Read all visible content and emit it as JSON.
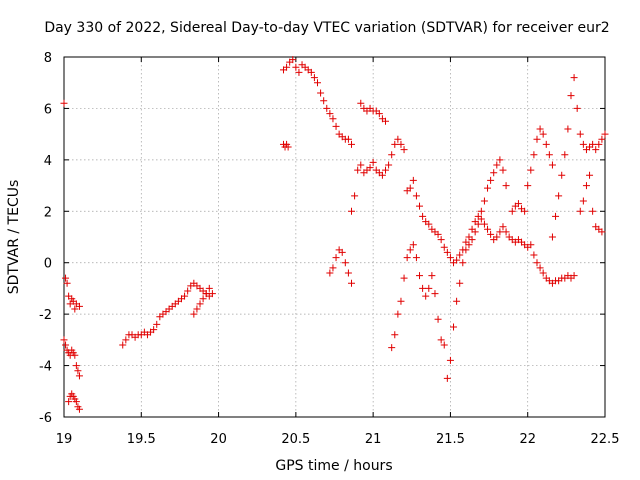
{
  "chart_data": {
    "type": "scatter",
    "title": "Day 330 of 2022, Sidereal Day-to-day VTEC variation (SDTVAR) for receiver eur2",
    "xlabel": "GPS time / hours",
    "ylabel": "SDTVAR / TECUs",
    "xlim": [
      19,
      22.5
    ],
    "ylim": [
      -6,
      8
    ],
    "x_ticks": [
      19,
      19.5,
      20,
      20.5,
      21,
      21.5,
      22,
      22.5
    ],
    "x_tick_labels": [
      "19",
      "19.5",
      "20",
      "20.5",
      "21",
      "21.5",
      "22",
      "22.5"
    ],
    "y_ticks": [
      -6,
      -4,
      -2,
      0,
      2,
      4,
      6,
      8
    ],
    "y_tick_labels": [
      "-6",
      "-4",
      "-2",
      "0",
      "2",
      "4",
      "6",
      "8"
    ],
    "grid": true,
    "marker": "+",
    "color": "#e00000",
    "series": [
      {
        "name": "seg1",
        "x": [
          19.0,
          19.01,
          19.02,
          19.03,
          19.04,
          19.05,
          19.06,
          19.07,
          19.08,
          19.1
        ],
        "y": [
          6.2,
          -0.6,
          -0.8,
          -1.3,
          -1.6,
          -1.4,
          -1.5,
          -1.8,
          -1.6,
          -1.7
        ]
      },
      {
        "name": "seg2",
        "x": [
          19.0,
          19.01,
          19.02,
          19.03,
          19.04,
          19.05,
          19.06,
          19.07,
          19.08,
          19.09,
          19.1
        ],
        "y": [
          -3.0,
          -3.2,
          -3.4,
          -3.5,
          -3.6,
          -3.4,
          -3.5,
          -3.6,
          -4.0,
          -4.2,
          -4.4
        ]
      },
      {
        "name": "seg3",
        "x": [
          19.03,
          19.04,
          19.05,
          19.06,
          19.07,
          19.08,
          19.09,
          19.1
        ],
        "y": [
          -5.4,
          -5.2,
          -5.1,
          -5.2,
          -5.3,
          -5.4,
          -5.6,
          -5.7
        ]
      },
      {
        "name": "seg4",
        "x": [
          19.38,
          19.4,
          19.42,
          19.44,
          19.46,
          19.48,
          19.5,
          19.52,
          19.54,
          19.56,
          19.58,
          19.6,
          19.62,
          19.64,
          19.66,
          19.68,
          19.7,
          19.72,
          19.74,
          19.76,
          19.78,
          19.8,
          19.82,
          19.84,
          19.86,
          19.88,
          19.9,
          19.92,
          19.94,
          19.96
        ],
        "y": [
          -3.2,
          -3.0,
          -2.8,
          -2.8,
          -2.9,
          -2.8,
          -2.8,
          -2.7,
          -2.8,
          -2.7,
          -2.6,
          -2.4,
          -2.1,
          -2.0,
          -1.9,
          -1.8,
          -1.7,
          -1.6,
          -1.5,
          -1.4,
          -1.3,
          -1.1,
          -0.9,
          -0.8,
          -0.9,
          -1.0,
          -1.1,
          -1.2,
          -1.3,
          -1.2
        ]
      },
      {
        "name": "seg5",
        "x": [
          19.84,
          19.86,
          19.88,
          19.9,
          19.92,
          19.94
        ],
        "y": [
          -2.0,
          -1.8,
          -1.6,
          -1.4,
          -1.2,
          -1.0
        ]
      },
      {
        "name": "seg6",
        "x": [
          20.42,
          20.43,
          20.44,
          20.45
        ],
        "y": [
          4.6,
          4.5,
          4.6,
          4.5
        ]
      },
      {
        "name": "seg7",
        "x": [
          20.42,
          20.44,
          20.46,
          20.48,
          20.5,
          20.52,
          20.54,
          20.56,
          20.58,
          20.6,
          20.62,
          20.64,
          20.66,
          20.68,
          20.7,
          20.72,
          20.74,
          20.76,
          20.78,
          20.8,
          20.82,
          20.84,
          20.86
        ],
        "y": [
          7.5,
          7.6,
          7.8,
          7.9,
          7.6,
          7.4,
          7.7,
          7.6,
          7.5,
          7.4,
          7.2,
          7.0,
          6.6,
          6.3,
          6.0,
          5.8,
          5.6,
          5.3,
          5.0,
          4.9,
          4.8,
          4.8,
          4.6
        ]
      },
      {
        "name": "seg8",
        "x": [
          20.72,
          20.74,
          20.76,
          20.78,
          20.8,
          20.82,
          20.84,
          20.86
        ],
        "y": [
          -0.4,
          -0.2,
          0.2,
          0.5,
          0.4,
          0.0,
          -0.4,
          -0.8
        ]
      },
      {
        "name": "seg9",
        "x": [
          20.86,
          20.88,
          20.9,
          20.92,
          20.94,
          20.96,
          20.98,
          21.0,
          21.02,
          21.04,
          21.06,
          21.08,
          21.1,
          21.12,
          21.14,
          21.16,
          21.18,
          21.2
        ],
        "y": [
          2.0,
          2.6,
          3.6,
          3.8,
          3.5,
          3.6,
          3.7,
          3.9,
          3.6,
          3.5,
          3.4,
          3.6,
          3.8,
          4.2,
          4.6,
          4.8,
          4.6,
          4.4
        ]
      },
      {
        "name": "seg10",
        "x": [
          20.92,
          20.94,
          20.96,
          20.98,
          21.0,
          21.02,
          21.04,
          21.06,
          21.08
        ],
        "y": [
          6.2,
          6.0,
          5.9,
          6.0,
          5.9,
          5.9,
          5.8,
          5.6,
          5.5
        ]
      },
      {
        "name": "seg11",
        "x": [
          21.12,
          21.14,
          21.16,
          21.18,
          21.2,
          21.22,
          21.24,
          21.26,
          21.28,
          21.3,
          21.32,
          21.34,
          21.36,
          21.38,
          21.4,
          21.42,
          21.44,
          21.46,
          21.48,
          21.5,
          21.52,
          21.54,
          21.56,
          21.58,
          21.6,
          21.62,
          21.64,
          21.66,
          21.68,
          21.7
        ],
        "y": [
          -3.3,
          -2.8,
          -2.0,
          -1.5,
          -0.6,
          0.2,
          0.5,
          0.7,
          0.2,
          -0.5,
          -1.0,
          -1.3,
          -1.0,
          -0.5,
          -1.2,
          -2.2,
          -3.0,
          -3.2,
          -4.5,
          -3.8,
          -2.5,
          -1.5,
          -0.8,
          0.0,
          0.5,
          0.7,
          0.9,
          1.2,
          1.5,
          1.7
        ]
      },
      {
        "name": "seg12",
        "x": [
          21.22,
          21.24,
          21.26,
          21.28,
          21.3,
          21.32,
          21.34,
          21.36,
          21.38,
          21.4,
          21.42,
          21.44,
          21.46,
          21.48,
          21.5,
          21.52,
          21.54,
          21.56,
          21.58,
          21.6,
          21.62,
          21.64,
          21.66,
          21.68,
          21.7,
          21.72,
          21.74,
          21.76,
          21.78,
          21.8,
          21.82,
          21.84,
          21.86
        ],
        "y": [
          2.8,
          2.9,
          3.2,
          2.6,
          2.2,
          1.8,
          1.6,
          1.5,
          1.3,
          1.2,
          1.1,
          0.9,
          0.6,
          0.4,
          0.2,
          0.0,
          0.1,
          0.3,
          0.5,
          0.8,
          1.0,
          1.3,
          1.6,
          1.8,
          2.0,
          2.4,
          2.9,
          3.2,
          3.5,
          3.8,
          4.0,
          3.6,
          3.0
        ]
      },
      {
        "name": "seg13",
        "x": [
          21.72,
          21.74,
          21.76,
          21.78,
          21.8,
          21.82,
          21.84,
          21.86,
          21.88,
          21.9,
          21.92,
          21.94,
          21.96,
          21.98,
          22.0,
          22.02,
          22.04,
          22.06,
          22.08,
          22.1,
          22.12,
          22.14,
          22.16,
          22.18,
          22.2,
          22.22,
          22.24,
          22.26,
          22.28,
          22.3
        ],
        "y": [
          1.5,
          1.3,
          1.1,
          0.9,
          1.0,
          1.2,
          1.4,
          1.2,
          1.0,
          0.9,
          0.8,
          0.9,
          0.8,
          0.7,
          0.6,
          0.7,
          0.3,
          0.0,
          -0.2,
          -0.4,
          -0.6,
          -0.7,
          -0.8,
          -0.7,
          -0.7,
          -0.6,
          -0.6,
          -0.5,
          -0.6,
          -0.5
        ]
      },
      {
        "name": "seg14",
        "x": [
          21.9,
          21.92,
          21.94,
          21.96,
          21.98,
          22.0,
          22.02,
          22.04,
          22.06,
          22.08,
          22.1,
          22.12,
          22.14,
          22.16
        ],
        "y": [
          2.0,
          2.2,
          2.3,
          2.1,
          2.0,
          3.0,
          3.6,
          4.2,
          4.8,
          5.2,
          5.0,
          4.6,
          4.2,
          3.8
        ]
      },
      {
        "name": "seg15",
        "x": [
          22.16,
          22.18,
          22.2,
          22.22,
          22.24,
          22.26,
          22.28,
          22.3,
          22.32,
          22.34,
          22.36,
          22.38,
          22.4,
          22.42,
          22.44,
          22.46,
          22.48,
          22.5
        ],
        "y": [
          1.0,
          1.8,
          2.6,
          3.4,
          4.2,
          5.2,
          6.5,
          7.2,
          6.0,
          5.0,
          4.6,
          4.4,
          4.5,
          4.6,
          4.4,
          4.6,
          4.8,
          5.0
        ]
      },
      {
        "name": "seg16",
        "x": [
          22.34,
          22.36,
          22.38,
          22.4,
          22.42,
          22.44,
          22.46,
          22.48
        ],
        "y": [
          2.0,
          2.4,
          3.0,
          3.4,
          2.0,
          1.4,
          1.3,
          1.2
        ]
      }
    ]
  }
}
